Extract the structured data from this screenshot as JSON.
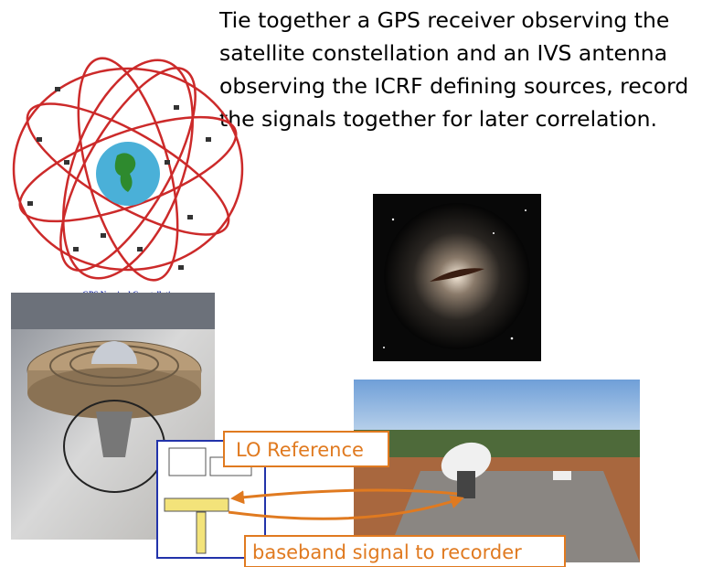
{
  "slide": {
    "text": {
      "lines": [
        "Tie together a GPS receiver observing the",
        "satellite constellation and an IVS antenna",
        "observing the ICRF defining sources, record",
        "the signals together for later correlation."
      ]
    },
    "constellation_caption": "GPS Nominal Constellation",
    "callouts": [
      "LO Reference",
      "baseband signal to recorder"
    ]
  }
}
